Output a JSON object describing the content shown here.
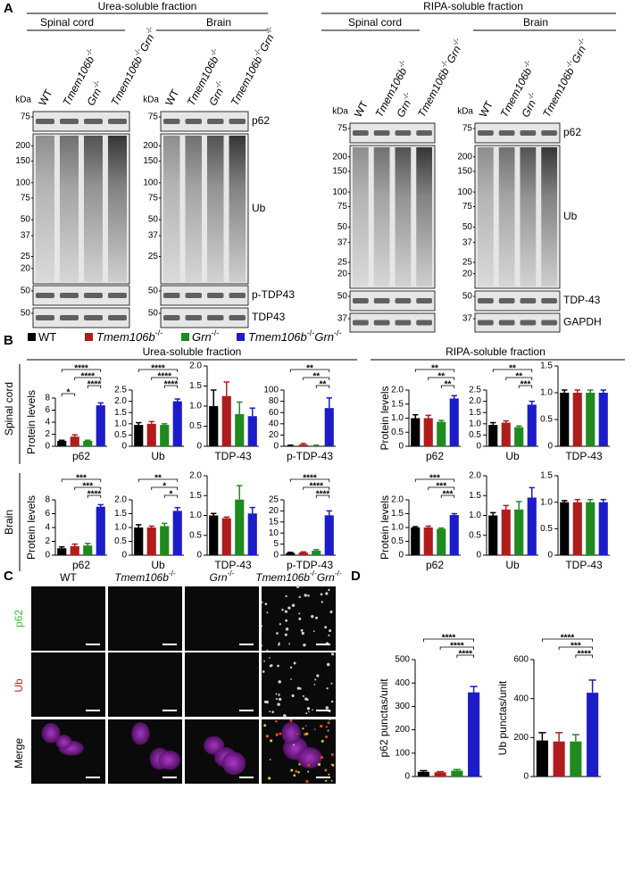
{
  "panel_labels": [
    "A",
    "B",
    "C",
    "D"
  ],
  "groups": [
    {
      "parts": [
        "WT"
      ],
      "color": "#000000"
    },
    {
      "parts": [
        "Tmem106b",
        "-/-"
      ],
      "color": "#b01c1c"
    },
    {
      "parts": [
        "Grn",
        "-/-"
      ],
      "color": "#1f8a1f"
    },
    {
      "parts": [
        "Tmem106b",
        "-/-",
        "Grn",
        "-/-"
      ],
      "color": "#1c1cc8"
    }
  ],
  "blots": [
    {
      "title": "Urea-soluble fraction",
      "kda": "kDa",
      "proteins": [
        "p62",
        "Ub",
        "p-TDP43",
        "TDP43"
      ],
      "panels": [
        {
          "tissue": "Spinal cord",
          "markers": [
            [
              "75"
            ],
            [
              "200",
              "150",
              "100",
              "75",
              "50",
              "37",
              "25",
              "20"
            ],
            [
              "50"
            ],
            [
              "50"
            ]
          ]
        },
        {
          "tissue": "Brain",
          "markers": [
            [
              "75"
            ],
            [
              "200",
              "150",
              "100",
              "75",
              "50",
              "37",
              "25"
            ],
            [
              "50"
            ],
            [
              "50"
            ]
          ]
        }
      ]
    },
    {
      "title": "RIPA-soluble fraction",
      "kda": "kDa",
      "proteins": [
        "p62",
        "Ub",
        "TDP-43",
        "GAPDH"
      ],
      "panels": [
        {
          "tissue": "Spinal cord",
          "markers": [
            [
              "75"
            ],
            [
              "200",
              "150",
              "100",
              "75",
              "50",
              "37",
              "25",
              "20"
            ],
            [
              "50"
            ],
            [
              "37"
            ]
          ]
        },
        {
          "tissue": "Brain",
          "markers": [
            [
              "75"
            ],
            [
              "200",
              "150",
              "100",
              "75",
              "50",
              "37",
              "25",
              "20"
            ],
            [
              "50"
            ],
            [
              "37"
            ]
          ]
        }
      ]
    }
  ],
  "panel_b": {
    "sections": [
      "Urea-soluble fraction",
      "RIPA-soluble fraction"
    ],
    "rows": [
      "Spinal cord",
      "Brain"
    ]
  },
  "panel_c": {
    "rows": [
      "p62",
      "Ub",
      "Merge"
    ]
  },
  "chart_data": [
    {
      "type": "bar",
      "xlabel": "p62",
      "ylabel": "Protein levels",
      "values": [
        0.9,
        1.6,
        0.9,
        6.8
      ],
      "errors": [
        0.1,
        0.3,
        0.1,
        0.4
      ],
      "ylim": [
        0,
        8
      ],
      "yticks": [
        0,
        2,
        4,
        6,
        8
      ],
      "significance": [
        {
          "from": 0,
          "to": 3,
          "label": "****"
        },
        {
          "from": 1,
          "to": 3,
          "label": "****"
        },
        {
          "from": 2,
          "to": 3,
          "label": "****"
        },
        {
          "from": 0,
          "to": 1,
          "label": "*"
        }
      ]
    },
    {
      "type": "bar",
      "xlabel": "Ub",
      "values": [
        0.95,
        1.0,
        0.95,
        2.0
      ],
      "errors": [
        0.1,
        0.1,
        0.05,
        0.1
      ],
      "ylim": [
        0,
        2.5
      ],
      "yticks": [
        0,
        0.5,
        {
          "value": 1,
          "label": "1.0"
        },
        1.5,
        {
          "value": 2,
          "label": "2.0"
        },
        2.5
      ],
      "significance": [
        {
          "from": 0,
          "to": 3,
          "label": "****"
        },
        {
          "from": 1,
          "to": 3,
          "label": "****"
        },
        {
          "from": 2,
          "to": 3,
          "label": "****"
        }
      ]
    },
    {
      "type": "bar",
      "xlabel": "TDP-43",
      "values": [
        1.0,
        1.25,
        0.8,
        0.75
      ],
      "errors": [
        0.4,
        0.35,
        0.3,
        0.2
      ],
      "ylim": [
        0,
        2
      ],
      "yticks": [
        0,
        0.5,
        {
          "value": 1,
          "label": "1.0"
        },
        1.5,
        {
          "value": 2,
          "label": "2.0"
        }
      ]
    },
    {
      "type": "bar",
      "xlabel": "p-TDP-43",
      "values": [
        1,
        3,
        1,
        68
      ],
      "errors": [
        1,
        2,
        1,
        18
      ],
      "ylim": [
        0,
        100
      ],
      "yticks": [
        0,
        20,
        40,
        60,
        80,
        100
      ],
      "significance": [
        {
          "from": 0,
          "to": 3,
          "label": "**"
        },
        {
          "from": 1,
          "to": 3,
          "label": "**"
        },
        {
          "from": 2,
          "to": 3,
          "label": "**"
        }
      ]
    },
    {
      "type": "bar",
      "xlabel": "p62",
      "ylabel": "Protein levels",
      "values": [
        1.0,
        1.0,
        0.87,
        1.7
      ],
      "errors": [
        0.12,
        0.1,
        0.05,
        0.1
      ],
      "ylim": [
        0,
        2
      ],
      "yticks": [
        0,
        0.5,
        {
          "value": 1,
          "label": "1.0"
        },
        1.5,
        {
          "value": 2,
          "label": "2.0"
        }
      ],
      "significance": [
        {
          "from": 0,
          "to": 3,
          "label": "**"
        },
        {
          "from": 1,
          "to": 3,
          "label": "**"
        },
        {
          "from": 2,
          "to": 3,
          "label": "**"
        }
      ]
    },
    {
      "type": "bar",
      "xlabel": "Ub",
      "values": [
        0.95,
        1.05,
        0.85,
        1.85
      ],
      "errors": [
        0.1,
        0.08,
        0.05,
        0.15
      ],
      "ylim": [
        0,
        2.5
      ],
      "yticks": [
        0,
        0.5,
        {
          "value": 1,
          "label": "1.0"
        },
        1.5,
        {
          "value": 2,
          "label": "2.0"
        },
        2.5
      ],
      "significance": [
        {
          "from": 0,
          "to": 3,
          "label": "**"
        },
        {
          "from": 1,
          "to": 3,
          "label": "**"
        },
        {
          "from": 2,
          "to": 3,
          "label": "***"
        }
      ]
    },
    {
      "type": "bar",
      "xlabel": "TDP-43",
      "values": [
        1.0,
        1.0,
        1.0,
        1.0
      ],
      "errors": [
        0.05,
        0.05,
        0.05,
        0.05
      ],
      "ylim": [
        0,
        1.5
      ],
      "yticks": [
        0,
        0.5,
        {
          "value": 1,
          "label": "1.0"
        },
        1.5
      ]
    },
    {
      "type": "bar",
      "xlabel": "p62",
      "ylabel": "Protein levels",
      "values": [
        1.0,
        1.3,
        1.4,
        7.0
      ],
      "errors": [
        0.2,
        0.3,
        0.3,
        0.3
      ],
      "ylim": [
        0,
        8
      ],
      "yticks": [
        0,
        2,
        4,
        6,
        8
      ],
      "significance": [
        {
          "from": 0,
          "to": 3,
          "label": "***"
        },
        {
          "from": 1,
          "to": 3,
          "label": "***"
        },
        {
          "from": 2,
          "to": 3,
          "label": "****"
        }
      ]
    },
    {
      "type": "bar",
      "xlabel": "Ub",
      "values": [
        1.0,
        1.0,
        1.05,
        1.6
      ],
      "errors": [
        0.1,
        0.05,
        0.1,
        0.12
      ],
      "ylim": [
        0,
        2
      ],
      "yticks": [
        0,
        0.5,
        {
          "value": 1,
          "label": "1.0"
        },
        1.5,
        {
          "value": 2,
          "label": "2.0"
        }
      ],
      "significance": [
        {
          "from": 0,
          "to": 3,
          "label": "**"
        },
        {
          "from": 1,
          "to": 3,
          "label": "*"
        },
        {
          "from": 2,
          "to": 3,
          "label": "*"
        }
      ]
    },
    {
      "type": "bar",
      "xlabel": "TDP-43",
      "values": [
        1.0,
        0.93,
        1.4,
        1.05
      ],
      "errors": [
        0.05,
        0.03,
        0.35,
        0.15
      ],
      "ylim": [
        0,
        2
      ],
      "yticks": [
        0,
        0.5,
        {
          "value": 1,
          "label": "1.0"
        },
        1.5,
        {
          "value": 2,
          "label": "2.0"
        }
      ]
    },
    {
      "type": "bar",
      "xlabel": "p-TDP-43",
      "values": [
        1,
        1.2,
        2,
        18
      ],
      "errors": [
        0.3,
        0.3,
        0.5,
        2
      ],
      "ylim": [
        0,
        25
      ],
      "yticks": [
        0,
        5,
        10,
        15,
        20,
        25
      ],
      "significance": [
        {
          "from": 0,
          "to": 3,
          "label": "****"
        },
        {
          "from": 1,
          "to": 3,
          "label": "****"
        },
        {
          "from": 2,
          "to": 3,
          "label": "****"
        }
      ]
    },
    {
      "type": "bar",
      "xlabel": "p62",
      "ylabel": "Protein levels",
      "values": [
        1.0,
        1.0,
        0.95,
        1.45
      ],
      "errors": [
        0.03,
        0.05,
        0.03,
        0.05
      ],
      "ylim": [
        0,
        2
      ],
      "yticks": [
        0,
        0.5,
        {
          "value": 1,
          "label": "1.0"
        },
        1.5,
        {
          "value": 2,
          "label": "2.0"
        }
      ],
      "significance": [
        {
          "from": 0,
          "to": 3,
          "label": "***"
        },
        {
          "from": 1,
          "to": 3,
          "label": "***"
        },
        {
          "from": 2,
          "to": 3,
          "label": "***"
        }
      ]
    },
    {
      "type": "bar",
      "xlabel": "Ub",
      "values": [
        1.0,
        1.15,
        1.15,
        1.45
      ],
      "errors": [
        0.07,
        0.1,
        0.2,
        0.25
      ],
      "ylim": [
        0,
        2
      ],
      "yticks": [
        0,
        0.5,
        {
          "value": 1,
          "label": "1.0"
        },
        1.5,
        {
          "value": 2,
          "label": "2.0"
        }
      ]
    },
    {
      "type": "bar",
      "xlabel": "TDP-43",
      "values": [
        1.0,
        1.0,
        1.0,
        1.0
      ],
      "errors": [
        0.03,
        0.05,
        0.05,
        0.05
      ],
      "ylim": [
        0,
        1.5
      ],
      "yticks": [
        0,
        0.5,
        {
          "value": 1,
          "label": "1.0"
        },
        1.5
      ]
    },
    {
      "type": "bar",
      "ylabel": "p62 punctas/unit",
      "values": [
        20,
        18,
        25,
        360
      ],
      "errors": [
        5,
        3,
        5,
        25
      ],
      "ylim": [
        0,
        500
      ],
      "yticks": [
        0,
        100,
        200,
        300,
        400,
        500
      ],
      "significance": [
        {
          "from": 0,
          "to": 3,
          "label": "****"
        },
        {
          "from": 1,
          "to": 3,
          "label": "****"
        },
        {
          "from": 2,
          "to": 3,
          "label": "****"
        }
      ]
    },
    {
      "type": "bar",
      "ylabel": "Ub punctas/unit",
      "values": [
        185,
        180,
        180,
        430
      ],
      "errors": [
        40,
        45,
        35,
        65
      ],
      "ylim": [
        0,
        600
      ],
      "yticks": [
        0,
        200,
        400,
        600
      ],
      "significance": [
        {
          "from": 0,
          "to": 3,
          "label": "****"
        },
        {
          "from": 1,
          "to": 3,
          "label": "***"
        },
        {
          "from": 2,
          "to": 3,
          "label": "****"
        }
      ]
    }
  ]
}
